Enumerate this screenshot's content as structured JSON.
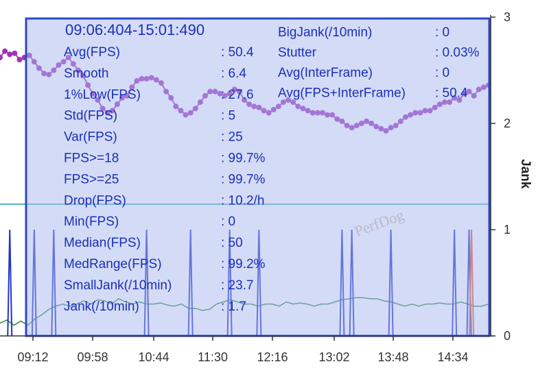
{
  "chart_data": {
    "type": "line",
    "x_ticks": [
      "09:12",
      "09:58",
      "10:44",
      "11:30",
      "12:16",
      "13:02",
      "13:48",
      "14:34"
    ],
    "right_axis": {
      "label": "Jank",
      "ticks": [
        0,
        1,
        2,
        3
      ],
      "ylim": [
        0,
        3
      ]
    },
    "grid": false,
    "watermark": "PerfDog",
    "series": [
      {
        "color": "#9c35b8",
        "marker": "dot",
        "axis": "right",
        "x_range": [
          0,
          100
        ],
        "values": [
          2.62,
          2.68,
          2.65,
          2.66,
          2.6,
          2.62,
          2.64,
          2.58,
          2.52,
          2.47,
          2.46,
          2.5,
          2.55,
          2.58,
          2.62,
          2.56,
          2.5,
          2.45,
          2.36,
          2.28,
          2.22,
          2.14,
          2.1,
          2.12,
          2.18,
          2.24,
          2.26,
          2.34,
          2.4,
          2.42,
          2.42,
          2.43,
          2.41,
          2.38,
          2.3,
          2.24,
          2.16,
          2.12,
          2.08,
          2.1,
          2.14,
          2.2,
          2.26,
          2.3,
          2.3,
          2.28,
          2.26,
          2.28,
          2.32,
          2.3,
          2.22,
          2.18,
          2.16,
          2.15,
          2.12,
          2.1,
          2.13,
          2.16,
          2.2,
          2.22,
          2.2,
          2.16,
          2.14,
          2.12,
          2.1,
          2.1,
          2.1,
          2.08,
          2.08,
          2.04,
          2.02,
          1.98,
          1.96,
          1.98,
          2.0,
          2.02,
          2.0,
          1.97,
          1.95,
          1.93,
          1.96,
          1.98,
          2.02,
          2.06,
          2.08,
          2.1,
          2.1,
          2.12,
          2.12,
          2.15,
          2.18,
          2.2,
          2.2,
          2.24,
          2.22,
          2.28,
          2.3,
          2.26,
          2.32,
          2.34,
          2.36
        ]
      },
      {
        "color": "#1aa0a8",
        "axis": "right",
        "points": [
          [
            0,
            1.24
          ],
          [
            100,
            1.24
          ]
        ]
      },
      {
        "color": "#2b8a3e",
        "axis": "right",
        "values": [
          0.12,
          0.15,
          0.1,
          0.14,
          0.1,
          0.16,
          0.2,
          0.25,
          0.28,
          0.3,
          0.28,
          0.3,
          0.33,
          0.3,
          0.34,
          0.33,
          0.3,
          0.35,
          0.32,
          0.3,
          0.32,
          0.3,
          0.3,
          0.31,
          0.29,
          0.28,
          0.3,
          0.26,
          0.26,
          0.24,
          0.25,
          0.3,
          0.32,
          0.34,
          0.32,
          0.3,
          0.3,
          0.28,
          0.3,
          0.3,
          0.28,
          0.32,
          0.3,
          0.31,
          0.3,
          0.28,
          0.3,
          0.3,
          0.32,
          0.34,
          0.35,
          0.36,
          0.36,
          0.35,
          0.35,
          0.33,
          0.32,
          0.3,
          0.28,
          0.3,
          0.28,
          0.3,
          0.3,
          0.31,
          0.3,
          0.3,
          0.32,
          0.3,
          0.28,
          0.28,
          0.3
        ]
      },
      {
        "color": "#2233c8",
        "type": "spikes",
        "axis": "right",
        "spikes": [
          [
            2,
            1.0
          ],
          [
            7,
            1.0
          ],
          [
            11,
            1.0
          ],
          [
            30,
            1.0
          ],
          [
            39,
            1.0
          ],
          [
            47,
            1.0
          ],
          [
            53,
            1.0
          ],
          [
            70,
            1.0
          ],
          [
            72,
            1.0
          ],
          [
            80,
            1.0
          ],
          [
            93,
            1.0
          ],
          [
            96,
            1.0
          ]
        ]
      },
      {
        "color": "#e05a2a",
        "type": "spikes",
        "axis": "right",
        "spikes": [
          [
            96.5,
            1.0
          ]
        ]
      }
    ],
    "stats_panel": {
      "time_range": "09:06:404-15:01:490",
      "left": [
        {
          "label": "Avg(FPS)",
          "value": ": 50.4"
        },
        {
          "label": "Smooth",
          "value": ": 6.4"
        },
        {
          "label": "1%Low(FPS)",
          "value": ": 27.6"
        },
        {
          "label": "Std(FPS)",
          "value": ": 5"
        },
        {
          "label": "Var(FPS)",
          "value": ": 25"
        },
        {
          "label": "FPS>=18",
          "value": ": 99.7%"
        },
        {
          "label": "FPS>=25",
          "value": ": 99.7%"
        },
        {
          "label": "Drop(FPS)",
          "value": ": 10.2/h"
        },
        {
          "label": "Min(FPS)",
          "value": ": 0"
        },
        {
          "label": "Median(FPS)",
          "value": ": 50"
        },
        {
          "label": "MedRange(FPS)",
          "value": ": 99.2%"
        },
        {
          "label": "SmallJank(/10min)",
          "value": ": 23.7"
        },
        {
          "label": "Jank(/10min)",
          "value": ": 1.7"
        }
      ],
      "right": [
        {
          "label": "BigJank(/10min)",
          "value": ": 0"
        },
        {
          "label": "Stutter",
          "value": ": 0.03%"
        },
        {
          "label": "Avg(InterFrame)",
          "value": ": 0"
        },
        {
          "label": "Avg(FPS+InterFrame)",
          "value": ": 50.4"
        }
      ]
    }
  }
}
